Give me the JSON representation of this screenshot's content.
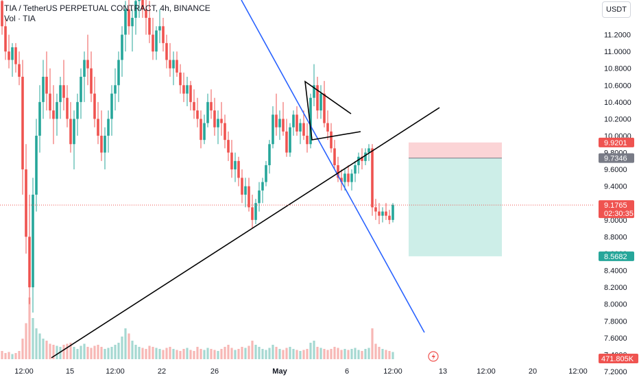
{
  "header": {
    "symbol": "TIA / TetherUS PERPETUAL CONTRACT, 4h, BINANCE",
    "volume_label": "Vol · TIA",
    "currency": "USDT"
  },
  "colors": {
    "up": "#26a69a",
    "down": "#ef5350",
    "upVol": "#a5d8d1",
    "downVol": "#f7b7b5",
    "blueLine": "#2962ff",
    "blackLine": "#000000",
    "targetZone": "#cdeee8",
    "stopZone": "#fbd4d6"
  },
  "chart_data": {
    "type": "candlestick",
    "instrument": "TIA / TetherUS PERPETUAL CONTRACT",
    "interval": "4h",
    "exchange": "BINANCE",
    "ylim": [
      7.2,
      11.4
    ],
    "y_ticks": [
      "7.2000",
      "7.4000",
      "7.6000",
      "7.8000",
      "8.0000",
      "8.2000",
      "8.4000",
      "8.6000",
      "8.8000",
      "9.0000",
      "9.2000",
      "9.4000",
      "9.6000",
      "9.8000",
      "10.0000",
      "10.2000",
      "10.4000",
      "10.6000",
      "10.8000",
      "11.0000",
      "11.2000"
    ],
    "x_ticks": [
      "12:00",
      "15",
      "12:00",
      "22",
      "26",
      "May",
      "6",
      "12:00",
      "13",
      "12:00",
      "20",
      "12:00"
    ],
    "price_labels": {
      "stop": "9.9201",
      "entry": "9.7346",
      "last": "9.1765",
      "countdown": "02:30:35",
      "target": "8.5682",
      "volume": "471.805K"
    },
    "candles": [
      [
        11.6,
        11.85,
        11.2,
        11.3
      ],
      [
        11.3,
        11.4,
        10.9,
        11.0
      ],
      [
        11.0,
        11.2,
        10.8,
        10.9
      ],
      [
        10.9,
        11.1,
        10.7,
        11.05
      ],
      [
        11.05,
        11.1,
        10.75,
        10.85
      ],
      [
        10.85,
        11.0,
        10.6,
        10.7
      ],
      [
        10.7,
        10.9,
        9.3,
        9.6
      ],
      [
        9.6,
        9.9,
        8.6,
        8.8
      ],
      [
        8.8,
        9.3,
        8.0,
        8.2
      ],
      [
        8.2,
        9.5,
        7.9,
        9.3
      ],
      [
        9.3,
        10.2,
        9.1,
        10.0
      ],
      [
        10.0,
        10.6,
        9.8,
        10.4
      ],
      [
        10.4,
        10.9,
        10.2,
        10.7
      ],
      [
        10.7,
        11.0,
        10.3,
        10.5
      ],
      [
        10.5,
        10.8,
        10.2,
        10.3
      ],
      [
        10.3,
        10.6,
        9.9,
        10.2
      ],
      [
        10.2,
        10.5,
        10.0,
        10.4
      ],
      [
        10.4,
        10.7,
        10.2,
        10.6
      ],
      [
        10.6,
        10.9,
        10.3,
        10.45
      ],
      [
        10.45,
        10.6,
        10.1,
        10.2
      ],
      [
        10.2,
        10.4,
        9.8,
        9.9
      ],
      [
        9.9,
        10.3,
        9.6,
        10.2
      ],
      [
        10.2,
        10.5,
        10.0,
        10.4
      ],
      [
        10.4,
        10.8,
        10.2,
        10.7
      ],
      [
        10.7,
        11.0,
        10.4,
        10.9
      ],
      [
        10.9,
        11.2,
        10.6,
        10.8
      ],
      [
        10.8,
        11.0,
        10.4,
        10.5
      ],
      [
        10.5,
        10.7,
        10.1,
        10.2
      ],
      [
        10.2,
        10.4,
        9.9,
        10.0
      ],
      [
        10.0,
        10.3,
        9.7,
        9.8
      ],
      [
        9.8,
        10.1,
        9.6,
        10.0
      ],
      [
        10.0,
        10.3,
        9.8,
        10.2
      ],
      [
        10.2,
        10.6,
        10.0,
        10.5
      ],
      [
        10.5,
        10.8,
        10.3,
        10.6
      ],
      [
        10.6,
        11.0,
        10.4,
        10.9
      ],
      [
        10.9,
        11.3,
        10.7,
        11.2
      ],
      [
        11.2,
        11.6,
        11.0,
        11.5
      ],
      [
        11.5,
        11.8,
        11.2,
        11.3
      ],
      [
        11.3,
        11.5,
        11.0,
        11.4
      ],
      [
        11.4,
        11.7,
        11.2,
        11.6
      ],
      [
        11.6,
        11.9,
        11.4,
        11.7
      ],
      [
        11.7,
        11.9,
        11.4,
        11.5
      ],
      [
        11.5,
        11.7,
        11.2,
        11.4
      ],
      [
        11.4,
        11.6,
        11.1,
        11.2
      ],
      [
        11.2,
        11.4,
        10.9,
        11.0
      ],
      [
        11.0,
        11.3,
        10.9,
        11.25
      ],
      [
        11.25,
        11.5,
        11.1,
        11.3
      ],
      [
        11.3,
        11.4,
        11.0,
        11.1
      ],
      [
        11.1,
        11.2,
        10.8,
        10.9
      ],
      [
        10.9,
        11.1,
        10.7,
        10.8
      ],
      [
        10.8,
        11.0,
        10.6,
        10.9
      ],
      [
        10.9,
        11.0,
        10.7,
        10.75
      ],
      [
        10.75,
        10.85,
        10.5,
        10.6
      ],
      [
        10.6,
        10.75,
        10.4,
        10.5
      ],
      [
        10.5,
        10.7,
        10.35,
        10.6
      ],
      [
        10.6,
        10.65,
        10.3,
        10.4
      ],
      [
        10.4,
        10.55,
        10.2,
        10.3
      ],
      [
        10.3,
        10.45,
        10.1,
        10.2
      ],
      [
        10.2,
        10.3,
        9.85,
        9.95
      ],
      [
        9.95,
        10.25,
        9.9,
        10.15
      ],
      [
        10.15,
        10.5,
        10.1,
        10.4
      ],
      [
        10.4,
        10.55,
        10.2,
        10.3
      ],
      [
        10.3,
        10.45,
        10.0,
        10.1
      ],
      [
        10.1,
        10.3,
        9.9,
        10.2
      ],
      [
        10.2,
        10.4,
        10.0,
        10.15
      ],
      [
        10.15,
        10.25,
        9.85,
        9.95
      ],
      [
        9.95,
        10.05,
        9.7,
        9.8
      ],
      [
        9.8,
        9.95,
        9.5,
        9.6
      ],
      [
        9.6,
        9.8,
        9.45,
        9.7
      ],
      [
        9.7,
        9.75,
        9.4,
        9.5
      ],
      [
        9.5,
        9.6,
        9.2,
        9.3
      ],
      [
        9.3,
        9.5,
        9.15,
        9.4
      ],
      [
        9.4,
        9.5,
        9.1,
        9.15
      ],
      [
        9.15,
        9.3,
        8.9,
        9.0
      ],
      [
        9.0,
        9.25,
        8.95,
        9.2
      ],
      [
        9.2,
        9.45,
        9.1,
        9.35
      ],
      [
        9.35,
        9.5,
        9.2,
        9.45
      ],
      [
        9.45,
        9.7,
        9.4,
        9.65
      ],
      [
        9.65,
        9.95,
        9.55,
        9.9
      ],
      [
        9.9,
        10.35,
        9.85,
        10.25
      ],
      [
        10.25,
        10.5,
        10.0,
        10.1
      ],
      [
        10.1,
        10.3,
        9.95,
        10.2
      ],
      [
        10.2,
        10.4,
        10.0,
        10.05
      ],
      [
        10.05,
        10.2,
        9.75,
        9.8
      ],
      [
        9.8,
        10.15,
        9.75,
        10.1
      ],
      [
        10.1,
        10.3,
        10.0,
        10.25
      ],
      [
        10.25,
        10.35,
        10.0,
        10.05
      ],
      [
        10.05,
        10.2,
        9.9,
        10.15
      ],
      [
        10.15,
        10.3,
        9.95,
        10.0
      ],
      [
        10.0,
        10.15,
        9.8,
        9.9
      ],
      [
        9.9,
        10.5,
        9.85,
        10.45
      ],
      [
        10.45,
        10.85,
        10.35,
        10.6
      ],
      [
        10.6,
        10.7,
        10.2,
        10.3
      ],
      [
        10.3,
        10.6,
        10.2,
        10.5
      ],
      [
        10.5,
        10.65,
        10.1,
        10.15
      ],
      [
        10.15,
        10.3,
        9.95,
        10.05
      ],
      [
        10.05,
        10.15,
        9.8,
        9.85
      ],
      [
        9.85,
        9.95,
        9.6,
        9.65
      ],
      [
        9.65,
        9.75,
        9.45,
        9.5
      ],
      [
        9.5,
        9.6,
        9.35,
        9.45
      ],
      [
        9.45,
        9.6,
        9.35,
        9.55
      ],
      [
        9.55,
        9.65,
        9.4,
        9.45
      ],
      [
        9.45,
        9.6,
        9.35,
        9.55
      ],
      [
        9.55,
        9.7,
        9.45,
        9.65
      ],
      [
        9.65,
        9.8,
        9.55,
        9.75
      ],
      [
        9.75,
        9.85,
        9.6,
        9.7
      ],
      [
        9.7,
        9.85,
        9.65,
        9.8
      ],
      [
        9.8,
        9.9,
        9.7,
        9.85
      ],
      [
        9.85,
        9.9,
        9.05,
        9.15
      ],
      [
        9.15,
        9.25,
        9.0,
        9.1
      ],
      [
        9.1,
        9.2,
        8.95,
        9.05
      ],
      [
        9.05,
        9.15,
        8.97,
        9.1
      ],
      [
        9.1,
        9.2,
        9.0,
        9.05
      ],
      [
        9.05,
        9.12,
        8.95,
        9.0
      ],
      [
        9.0,
        9.2,
        8.97,
        9.18
      ]
    ],
    "volume": [
      8,
      6,
      7,
      5,
      6,
      8,
      20,
      35,
      60,
      40,
      30,
      25,
      20,
      18,
      15,
      14,
      13,
      12,
      14,
      15,
      16,
      12,
      10,
      13,
      15,
      12,
      11,
      13,
      14,
      12,
      10,
      11,
      12,
      14,
      16,
      22,
      30,
      25,
      18,
      14,
      12,
      11,
      10,
      13,
      12,
      11,
      10,
      9,
      11,
      12,
      10,
      9,
      8,
      10,
      11,
      9,
      8,
      12,
      10,
      9,
      11,
      10,
      9,
      8,
      10,
      12,
      14,
      11,
      9,
      10,
      12,
      11,
      13,
      18,
      14,
      12,
      10,
      9,
      11,
      14,
      12,
      10,
      9,
      11,
      12,
      10,
      9,
      8,
      9,
      10,
      16,
      18,
      12,
      11,
      10,
      9,
      10,
      12,
      11,
      9,
      10,
      9,
      10,
      11,
      9,
      8,
      10,
      11,
      30,
      15,
      12,
      10,
      9,
      8,
      7
    ]
  }
}
